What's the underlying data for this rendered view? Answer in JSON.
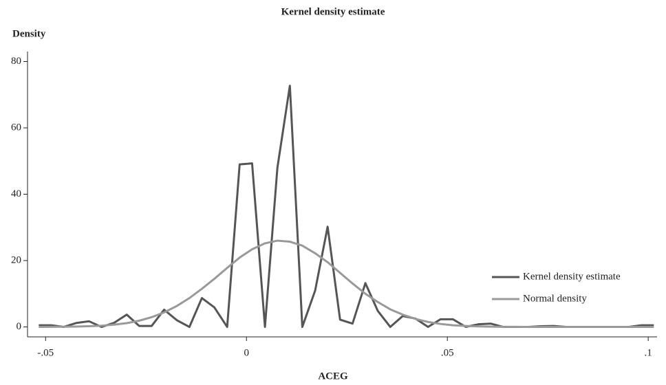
{
  "chart_data": {
    "type": "line",
    "title": "Kernel density estimate",
    "y_label": "Density",
    "x_label": "ACEG",
    "x": [
      -0.0517,
      -0.0486,
      -0.0455,
      -0.0423,
      -0.0392,
      -0.0361,
      -0.033,
      -0.0298,
      -0.0267,
      -0.0236,
      -0.0205,
      -0.0173,
      -0.0142,
      -0.0111,
      -0.008,
      -0.0048,
      -0.0017,
      0.0014,
      0.0046,
      0.0077,
      0.0108,
      0.0139,
      0.0171,
      0.0202,
      0.0233,
      0.0264,
      0.0296,
      0.0327,
      0.0358,
      0.0389,
      0.0421,
      0.0452,
      0.0483,
      0.0514,
      0.0546,
      0.0577,
      0.0608,
      0.0639,
      0.0671,
      0.0702,
      0.0733,
      0.0764,
      0.0796,
      0.0827,
      0.0858,
      0.0889,
      0.0921,
      0.0952,
      0.0983,
      0.1014
    ],
    "series": [
      {
        "name": "Kernel density estimate",
        "color": "#555555",
        "values": [
          0.5,
          0.5,
          0,
          1.2,
          1.7,
          0,
          1.2,
          3.7,
          0.3,
          0.3,
          5.2,
          2,
          0,
          8.7,
          5.9,
          0,
          49,
          49.3,
          0,
          48,
          72.7,
          0,
          11,
          30.2,
          2.2,
          1,
          13.2,
          4.8,
          0,
          3.3,
          2.5,
          0,
          2.3,
          2.3,
          0,
          0.8,
          1,
          0,
          0,
          0,
          0.2,
          0.3,
          0,
          0,
          0,
          0,
          0,
          0,
          0.5,
          0.5
        ]
      },
      {
        "name": "Normal density",
        "color": "#999999",
        "values": [
          0.01,
          0.03,
          0.05,
          0.11,
          0.21,
          0.38,
          0.68,
          1.14,
          1.87,
          2.94,
          4.38,
          6.34,
          8.7,
          11.5,
          14.5,
          17.8,
          20.9,
          23.4,
          25.2,
          26,
          25.7,
          24.5,
          22.2,
          19.5,
          16.3,
          13.1,
          10,
          7.5,
          5.3,
          3.7,
          2.4,
          1.5,
          0.9,
          0.5,
          0.29,
          0.15,
          0.08,
          0.04,
          0.02,
          0.01,
          0,
          0,
          0,
          0,
          0,
          0,
          0,
          0,
          0,
          0
        ]
      }
    ],
    "xlim": [
      -0.0545,
      0.1022
    ],
    "ylim": [
      -3,
      83
    ],
    "xticks": [
      {
        "value": -0.05,
        "label": "-.05"
      },
      0,
      {
        "value": 0.05,
        "label": ".05"
      },
      {
        "value": 0.1,
        "label": ".1"
      }
    ],
    "yticks": [
      0,
      20,
      40,
      60,
      80
    ],
    "legend": "right"
  }
}
